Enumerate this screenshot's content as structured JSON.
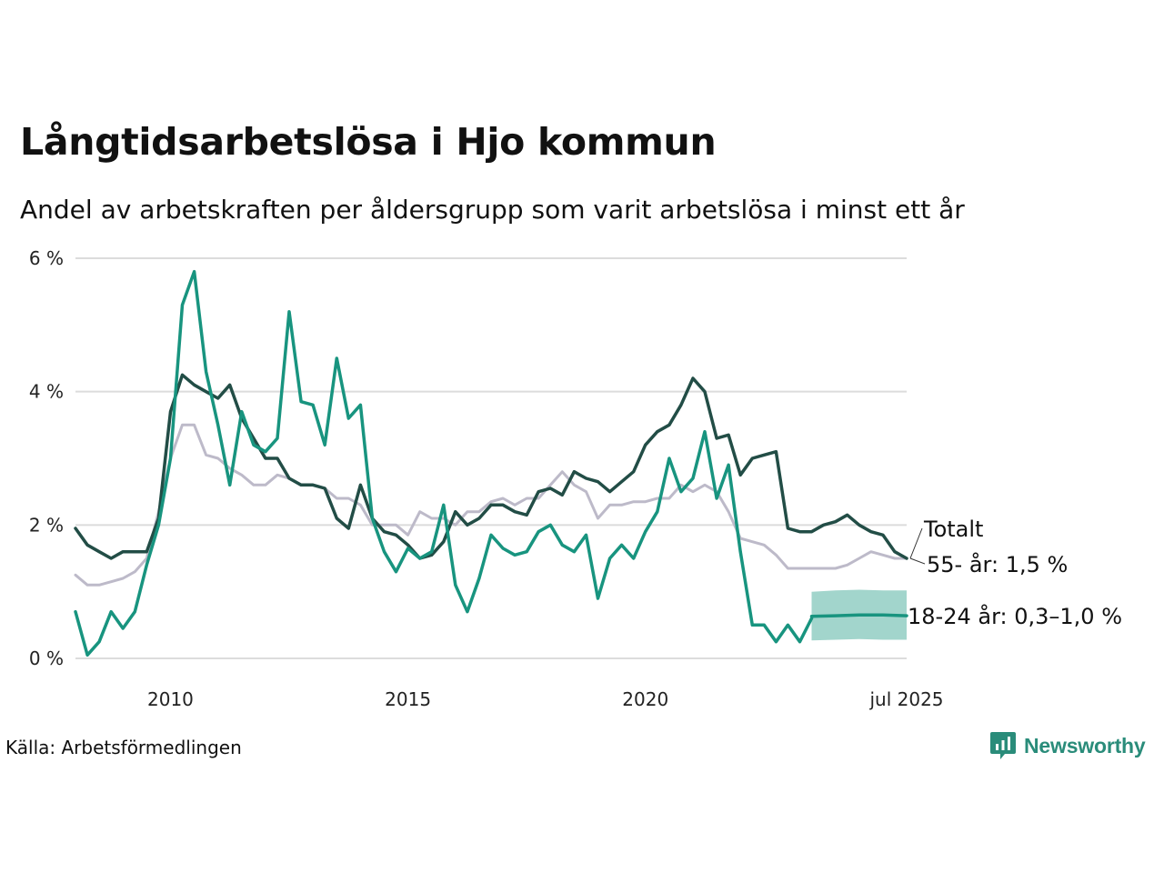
{
  "title": "Långtidsarbetslösa i Hjo kommun",
  "subtitle": "Andel av arbetskraften per åldersgrupp som varit arbetslösa i minst ett år",
  "source": "Källa: Arbetsförmedlingen",
  "brand": {
    "name": "Newsworthy",
    "icon": "newsworthy-logo-icon",
    "color": "#2a8c7a"
  },
  "chart_data": {
    "type": "line",
    "y_ticks": [
      {
        "value": 0,
        "label": "0 %"
      },
      {
        "value": 2,
        "label": "2 %"
      },
      {
        "value": 4,
        "label": "4 %"
      },
      {
        "value": 6,
        "label": "6 %"
      }
    ],
    "x_ticks": [
      {
        "value": 2010.0,
        "label": "2010"
      },
      {
        "value": 2015.0,
        "label": "2015"
      },
      {
        "value": 2020.0,
        "label": "2020"
      },
      {
        "value": 2025.5,
        "label": "jul 2025"
      }
    ],
    "xlim": [
      2008.0,
      2025.5
    ],
    "ylim": [
      0,
      6
    ],
    "grid": true,
    "series": [
      {
        "name": "55- år",
        "end_label": "55- år: 1,5 %",
        "color": "#bdbac9",
        "x": [
          2008.0,
          2008.25,
          2008.5,
          2008.75,
          2009.0,
          2009.25,
          2009.5,
          2009.75,
          2010.0,
          2010.25,
          2010.5,
          2010.75,
          2011.0,
          2011.25,
          2011.5,
          2011.75,
          2012.0,
          2012.25,
          2012.5,
          2012.75,
          2013.0,
          2013.25,
          2013.5,
          2013.75,
          2014.0,
          2014.25,
          2014.5,
          2014.75,
          2015.0,
          2015.25,
          2015.5,
          2015.75,
          2016.0,
          2016.25,
          2016.5,
          2016.75,
          2017.0,
          2017.25,
          2017.5,
          2017.75,
          2018.0,
          2018.25,
          2018.5,
          2018.75,
          2019.0,
          2019.25,
          2019.5,
          2019.75,
          2020.0,
          2020.25,
          2020.5,
          2020.75,
          2021.0,
          2021.25,
          2021.5,
          2021.75,
          2022.0,
          2022.25,
          2022.5,
          2022.75,
          2023.0,
          2023.25,
          2023.5,
          2023.75,
          2024.0,
          2024.25,
          2024.5,
          2024.75,
          2025.0,
          2025.25,
          2025.5
        ],
        "values": [
          1.25,
          1.1,
          1.1,
          1.15,
          1.2,
          1.3,
          1.5,
          2.2,
          3.0,
          3.5,
          3.5,
          3.05,
          3.0,
          2.85,
          2.75,
          2.6,
          2.6,
          2.75,
          2.7,
          2.6,
          2.6,
          2.55,
          2.4,
          2.4,
          2.3,
          2.0,
          2.0,
          2.0,
          1.85,
          2.2,
          2.1,
          2.1,
          2.0,
          2.2,
          2.2,
          2.35,
          2.4,
          2.3,
          2.4,
          2.4,
          2.6,
          2.8,
          2.6,
          2.5,
          2.1,
          2.3,
          2.3,
          2.35,
          2.35,
          2.4,
          2.4,
          2.6,
          2.5,
          2.6,
          2.5,
          2.2,
          1.8,
          1.75,
          1.7,
          1.55,
          1.35,
          1.35,
          1.35,
          1.35,
          1.35,
          1.4,
          1.5,
          1.6,
          1.55,
          1.5,
          1.5
        ]
      },
      {
        "name": "Totalt",
        "end_label": "Totalt",
        "color": "#224d46",
        "x": [
          2008.0,
          2008.25,
          2008.5,
          2008.75,
          2009.0,
          2009.25,
          2009.5,
          2009.75,
          2010.0,
          2010.25,
          2010.5,
          2010.75,
          2011.0,
          2011.25,
          2011.5,
          2011.75,
          2012.0,
          2012.25,
          2012.5,
          2012.75,
          2013.0,
          2013.25,
          2013.5,
          2013.75,
          2014.0,
          2014.25,
          2014.5,
          2014.75,
          2015.0,
          2015.25,
          2015.5,
          2015.75,
          2016.0,
          2016.25,
          2016.5,
          2016.75,
          2017.0,
          2017.25,
          2017.5,
          2017.75,
          2018.0,
          2018.25,
          2018.5,
          2018.75,
          2019.0,
          2019.25,
          2019.5,
          2019.75,
          2020.0,
          2020.25,
          2020.5,
          2020.75,
          2021.0,
          2021.25,
          2021.5,
          2021.75,
          2022.0,
          2022.25,
          2022.5,
          2022.75,
          2023.0,
          2023.25,
          2023.5,
          2023.75,
          2024.0,
          2024.25,
          2024.5,
          2024.75,
          2025.0,
          2025.25,
          2025.5
        ],
        "values": [
          1.95,
          1.7,
          1.6,
          1.5,
          1.6,
          1.6,
          1.6,
          2.1,
          3.7,
          4.25,
          4.1,
          4.0,
          3.9,
          4.1,
          3.6,
          3.3,
          3.0,
          3.0,
          2.7,
          2.6,
          2.6,
          2.55,
          2.1,
          1.95,
          2.6,
          2.1,
          1.9,
          1.85,
          1.7,
          1.5,
          1.55,
          1.75,
          2.2,
          2.0,
          2.1,
          2.3,
          2.3,
          2.2,
          2.15,
          2.5,
          2.55,
          2.45,
          2.8,
          2.7,
          2.65,
          2.5,
          2.65,
          2.8,
          3.2,
          3.4,
          3.5,
          3.8,
          4.2,
          4.0,
          3.3,
          3.35,
          2.75,
          3.0,
          3.05,
          3.1,
          1.95,
          1.9,
          1.9,
          2.0,
          2.05,
          2.15,
          2.0,
          1.9,
          1.85,
          1.6,
          1.5
        ]
      },
      {
        "name": "18-24 år",
        "end_label": "18-24 år: 0,3–1,0 %",
        "color": "#18947f",
        "band_color": "#9dd3c9",
        "x": [
          2008.0,
          2008.25,
          2008.5,
          2008.75,
          2009.0,
          2009.25,
          2009.5,
          2009.75,
          2010.0,
          2010.25,
          2010.5,
          2010.75,
          2011.0,
          2011.25,
          2011.5,
          2011.75,
          2012.0,
          2012.25,
          2012.5,
          2012.75,
          2013.0,
          2013.25,
          2013.5,
          2013.75,
          2014.0,
          2014.25,
          2014.5,
          2014.75,
          2015.0,
          2015.25,
          2015.5,
          2015.75,
          2016.0,
          2016.25,
          2016.5,
          2016.75,
          2017.0,
          2017.25,
          2017.5,
          2017.75,
          2018.0,
          2018.25,
          2018.5,
          2018.75,
          2019.0,
          2019.25,
          2019.5,
          2019.75,
          2020.0,
          2020.25,
          2020.5,
          2020.75,
          2021.0,
          2021.25,
          2021.5,
          2021.75,
          2022.0,
          2022.25,
          2022.5,
          2022.75,
          2023.0,
          2023.25,
          2023.5
        ],
        "values": [
          0.7,
          0.05,
          0.25,
          0.7,
          0.45,
          0.7,
          1.4,
          2.0,
          3.0,
          5.3,
          5.8,
          4.3,
          3.5,
          2.6,
          3.7,
          3.2,
          3.1,
          3.3,
          5.2,
          3.85,
          3.8,
          3.2,
          4.5,
          3.6,
          3.8,
          2.1,
          1.6,
          1.3,
          1.65,
          1.5,
          1.6,
          2.3,
          1.1,
          0.7,
          1.2,
          1.85,
          1.65,
          1.55,
          1.6,
          1.9,
          2.0,
          1.7,
          1.6,
          1.85,
          0.9,
          1.5,
          1.7,
          1.5,
          1.9,
          2.2,
          3.0,
          2.5,
          2.7,
          3.4,
          2.4,
          2.9,
          1.6,
          0.5,
          0.5,
          0.25,
          0.5,
          0.25,
          0.6
        ],
        "estimate": {
          "x": [
            2023.5,
            2024.0,
            2024.5,
            2025.0,
            2025.5
          ],
          "values": [
            0.63,
            0.64,
            0.65,
            0.65,
            0.64
          ],
          "low": [
            0.27,
            0.28,
            0.29,
            0.28,
            0.28
          ],
          "high": [
            1.0,
            1.02,
            1.03,
            1.02,
            1.02
          ]
        }
      }
    ]
  }
}
